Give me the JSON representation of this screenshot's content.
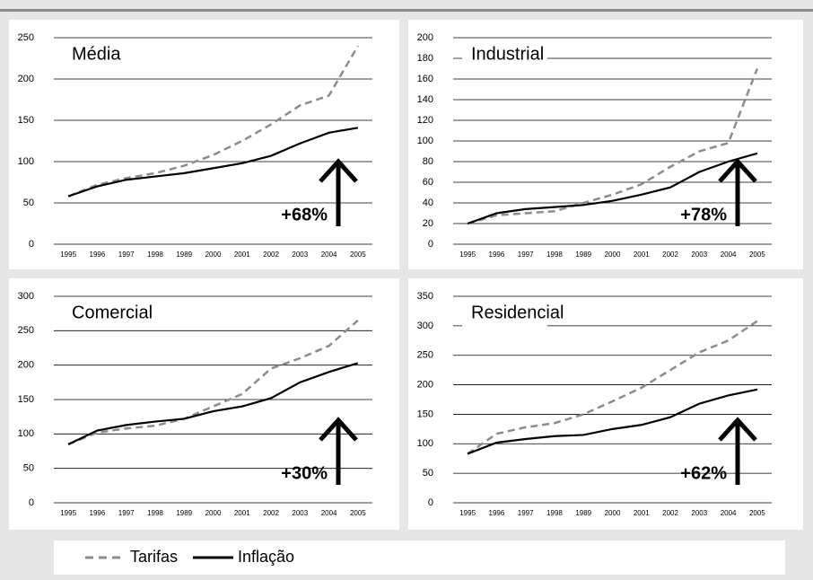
{
  "chart_data": [
    {
      "type": "line",
      "title": "Média",
      "categories": [
        "1995",
        "1996",
        "1997",
        "1998",
        "1989",
        "2000",
        "2001",
        "2002",
        "2003",
        "2004",
        "2005"
      ],
      "series": [
        {
          "name": "Tarifas",
          "color": "#8c8c8c",
          "dashed": true,
          "values": [
            58,
            72,
            80,
            86,
            95,
            108,
            125,
            145,
            168,
            180,
            240
          ]
        },
        {
          "name": "Inflação",
          "color": "#000000",
          "dashed": false,
          "values": [
            58,
            70,
            78,
            82,
            86,
            92,
            98,
            107,
            122,
            135,
            141
          ]
        }
      ],
      "ylim": [
        0,
        250
      ],
      "yticks": [
        0,
        50,
        100,
        150,
        200,
        250
      ],
      "grid": true,
      "annotation": "+68%"
    },
    {
      "type": "line",
      "title": "Industrial",
      "categories": [
        "1995",
        "1996",
        "1997",
        "1998",
        "1989",
        "2000",
        "2001",
        "2002",
        "2003",
        "2004",
        "2005"
      ],
      "series": [
        {
          "color": "#8c8c8c",
          "dashed": true,
          "values": [
            20,
            28,
            30,
            32,
            40,
            48,
            58,
            75,
            90,
            98,
            170
          ]
        },
        {
          "color": "#000000",
          "dashed": false,
          "values": [
            20,
            30,
            34,
            36,
            38,
            42,
            48,
            55,
            70,
            80,
            88
          ]
        }
      ],
      "ylim": [
        0,
        200
      ],
      "yticks": [
        0,
        20,
        40,
        60,
        80,
        100,
        120,
        140,
        160,
        180,
        200
      ],
      "grid": true,
      "annotation": "+78%"
    },
    {
      "type": "line",
      "title": "Comercial",
      "categories": [
        "1995",
        "1996",
        "1997",
        "1998",
        "1989",
        "2000",
        "2001",
        "2002",
        "2003",
        "2004",
        "2005"
      ],
      "series": [
        {
          "color": "#8c8c8c",
          "dashed": true,
          "values": [
            85,
            102,
            108,
            112,
            122,
            140,
            158,
            195,
            210,
            228,
            265
          ]
        },
        {
          "color": "#000000",
          "dashed": false,
          "values": [
            85,
            105,
            113,
            118,
            122,
            133,
            140,
            152,
            175,
            190,
            203
          ]
        }
      ],
      "ylim": [
        0,
        300
      ],
      "yticks": [
        0,
        50,
        100,
        150,
        200,
        250,
        300
      ],
      "grid": true,
      "annotation": "+30%"
    },
    {
      "type": "line",
      "title": "Residencial",
      "categories": [
        "1995",
        "1996",
        "1997",
        "1998",
        "1989",
        "2000",
        "2001",
        "2002",
        "2003",
        "2004",
        "2005"
      ],
      "series": [
        {
          "color": "#8c8c8c",
          "dashed": true,
          "values": [
            83,
            117,
            128,
            135,
            150,
            172,
            195,
            225,
            255,
            275,
            308
          ]
        },
        {
          "color": "#000000",
          "dashed": false,
          "values": [
            83,
            102,
            108,
            113,
            115,
            125,
            132,
            145,
            168,
            182,
            192
          ]
        }
      ],
      "ylim": [
        0,
        350
      ],
      "yticks": [
        0,
        50,
        100,
        150,
        200,
        250,
        300,
        350
      ],
      "grid": true,
      "annotation": "+62%"
    }
  ]
}
